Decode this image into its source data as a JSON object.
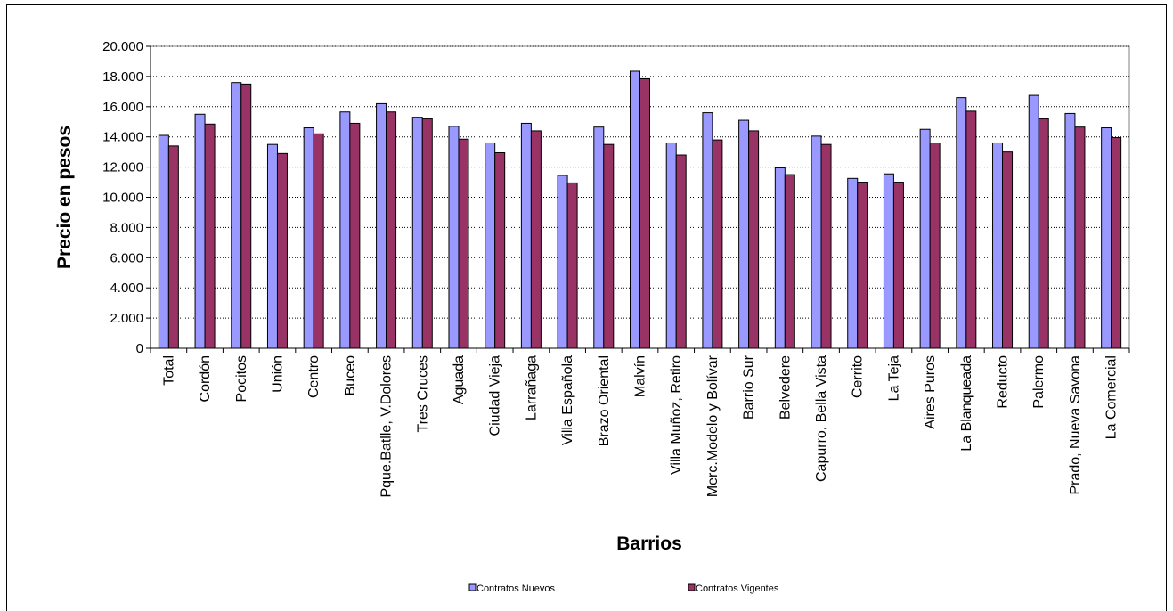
{
  "chart_data": {
    "type": "bar",
    "title": "",
    "xlabel": "Barrios",
    "ylabel": "Precio en pesos",
    "ylim": [
      0,
      20000
    ],
    "ytick_step": 2000,
    "ytick_labels": [
      "0",
      "2.000",
      "4.000",
      "6.000",
      "8.000",
      "10.000",
      "12.000",
      "14.000",
      "16.000",
      "18.000",
      "20.000"
    ],
    "grid": true,
    "legend_position": "bottom",
    "categories": [
      "Total",
      "Cordón",
      "Pocitos",
      "Unión",
      "Centro",
      "Buceo",
      "Pque.Batlle, V.Dolores",
      "Tres Cruces",
      "Aguada",
      "Ciudad Vieja",
      "Larrañaga",
      "Villa Española",
      "Brazo Oriental",
      "Malvín",
      "Villa Muñoz, Retiro",
      "Merc.Modelo y Bolívar",
      "Barrio Sur",
      "Belvedere",
      "Capurro, Bella Vista",
      "Cerrito",
      "La Teja",
      "Aires Puros",
      "La Blanqueada",
      "Reducto",
      "Palermo",
      "Prado, Nueva Savona",
      "La Comercial"
    ],
    "series": [
      {
        "name": "Contratos Nuevos",
        "color": "#9999ff",
        "values": [
          14100,
          15500,
          17600,
          13500,
          14600,
          15650,
          16200,
          15300,
          14700,
          13600,
          14900,
          11450,
          14650,
          18350,
          13600,
          15600,
          15100,
          11950,
          14050,
          11250,
          11550,
          14500,
          16600,
          13600,
          16750,
          15550,
          14600
        ]
      },
      {
        "name": "Contratos Vigentes",
        "color": "#993366",
        "values": [
          13400,
          14850,
          17500,
          12900,
          14200,
          14900,
          15650,
          15200,
          13850,
          12950,
          14400,
          10950,
          13500,
          17850,
          12800,
          13800,
          14400,
          11500,
          13500,
          11000,
          11000,
          13600,
          15700,
          13000,
          15200,
          14650,
          13950
        ]
      }
    ]
  }
}
